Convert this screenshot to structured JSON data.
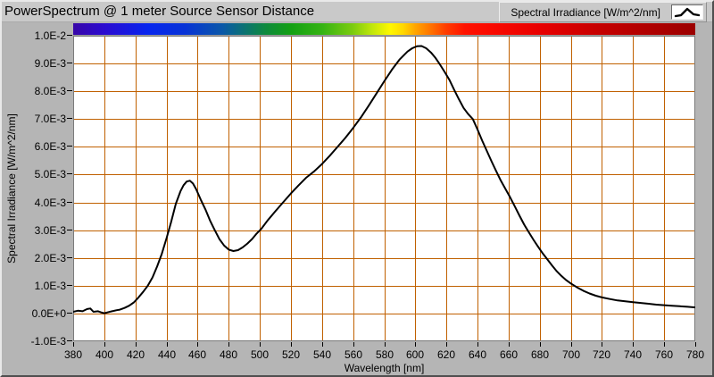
{
  "window": {
    "title": "PowerSpectrum @ 1 meter Source Sensor Distance"
  },
  "legend": {
    "label": "Spectral Irradiance [W/m^2/nm]",
    "icon": "curve-peak-icon"
  },
  "axes": {
    "x_title": "Wavelength [nm]",
    "y_title": "Spectral Irradiance [W/m^2/nm]",
    "x_ticks": [
      "380",
      "400",
      "420",
      "440",
      "460",
      "480",
      "500",
      "520",
      "540",
      "560",
      "580",
      "600",
      "620",
      "640",
      "660",
      "680",
      "700",
      "720",
      "740",
      "760",
      "780"
    ],
    "y_ticks": [
      "1.0E-2",
      "9.0E-3",
      "8.0E-3",
      "7.0E-3",
      "6.0E-3",
      "5.0E-3",
      "4.0E-3",
      "3.0E-3",
      "2.0E-3",
      "1.0E-3",
      "0.0E+0",
      "-1.0E-3"
    ]
  },
  "colors": {
    "grid": "#C06000",
    "curve": "#000000",
    "plot_bg": "#FFFFFF",
    "plot_border": "#7B7B7B",
    "panel_bg": "#B5B5B5",
    "titlebar_bg": "#C9C9C9",
    "spectrum_gradient": [
      [
        0,
        "#3807A8"
      ],
      [
        5,
        "#2B0BD0"
      ],
      [
        12,
        "#0725EE"
      ],
      [
        18,
        "#0733D6"
      ],
      [
        24,
        "#0A58A8"
      ],
      [
        28,
        "#0B766B"
      ],
      [
        31,
        "#0E8A3C"
      ],
      [
        35,
        "#13A013"
      ],
      [
        40,
        "#35B313"
      ],
      [
        45,
        "#7DCC10"
      ],
      [
        48,
        "#BFE60B"
      ],
      [
        51,
        "#FFF700"
      ],
      [
        53,
        "#FFD800"
      ],
      [
        55,
        "#FFA500"
      ],
      [
        57,
        "#FF7D00"
      ],
      [
        60,
        "#FF3C00"
      ],
      [
        63,
        "#FF1200"
      ],
      [
        67,
        "#FA0A00"
      ],
      [
        75,
        "#E80000"
      ],
      [
        85,
        "#C40000"
      ],
      [
        100,
        "#9B0000"
      ]
    ]
  },
  "chart_data": {
    "type": "line",
    "title": "PowerSpectrum @ 1 meter Source Sensor Distance",
    "xlabel": "Wavelength [nm]",
    "ylabel": "Spectral Irradiance [W/m^2/nm]",
    "xlim": [
      380,
      780
    ],
    "ylim": [
      -0.001,
      0.01
    ],
    "x_tick_step": 20,
    "y_tick_step": 0.001,
    "grid": true,
    "legend_position": "top-right",
    "series": [
      {
        "name": "Spectral Irradiance [W/m^2/nm]",
        "points": [
          [
            380,
            6e-05
          ],
          [
            383,
            0.0001
          ],
          [
            386,
            8e-05
          ],
          [
            389,
            0.00016
          ],
          [
            391,
            0.00018
          ],
          [
            393,
            6e-05
          ],
          [
            396,
            8e-05
          ],
          [
            398,
            4e-05
          ],
          [
            400,
            1e-05
          ],
          [
            402,
            4e-05
          ],
          [
            405,
            8e-05
          ],
          [
            408,
            0.00012
          ],
          [
            410,
            0.00014
          ],
          [
            413,
            0.0002
          ],
          [
            416,
            0.00028
          ],
          [
            419,
            0.0004
          ],
          [
            422,
            0.00058
          ],
          [
            425,
            0.00078
          ],
          [
            428,
            0.001
          ],
          [
            431,
            0.0013
          ],
          [
            434,
            0.0017
          ],
          [
            437,
            0.00215
          ],
          [
            440,
            0.0027
          ],
          [
            443,
            0.0033
          ],
          [
            446,
            0.00395
          ],
          [
            449,
            0.0044
          ],
          [
            451,
            0.00462
          ],
          [
            453,
            0.00475
          ],
          [
            455,
            0.00478
          ],
          [
            457,
            0.00468
          ],
          [
            459,
            0.00448
          ],
          [
            462,
            0.0041
          ],
          [
            465,
            0.00375
          ],
          [
            468,
            0.00335
          ],
          [
            471,
            0.003
          ],
          [
            474,
            0.00268
          ],
          [
            477,
            0.00245
          ],
          [
            480,
            0.0023
          ],
          [
            483,
            0.00225
          ],
          [
            486,
            0.00228
          ],
          [
            489,
            0.00238
          ],
          [
            492,
            0.00252
          ],
          [
            495,
            0.00268
          ],
          [
            498,
            0.00288
          ],
          [
            501,
            0.00305
          ],
          [
            505,
            0.00335
          ],
          [
            510,
            0.00368
          ],
          [
            515,
            0.004
          ],
          [
            520,
            0.00432
          ],
          [
            525,
            0.00462
          ],
          [
            530,
            0.0049
          ],
          [
            535,
            0.00512
          ],
          [
            540,
            0.00538
          ],
          [
            545,
            0.00568
          ],
          [
            550,
            0.006
          ],
          [
            555,
            0.00632
          ],
          [
            560,
            0.00668
          ],
          [
            565,
            0.00706
          ],
          [
            570,
            0.00748
          ],
          [
            575,
            0.00792
          ],
          [
            580,
            0.00836
          ],
          [
            585,
            0.00878
          ],
          [
            590,
            0.00915
          ],
          [
            595,
            0.00943
          ],
          [
            598,
            0.00955
          ],
          [
            601,
            0.00962
          ],
          [
            604,
            0.00963
          ],
          [
            607,
            0.00955
          ],
          [
            610,
            0.0094
          ],
          [
            613,
            0.0092
          ],
          [
            616,
            0.00895
          ],
          [
            619,
            0.00868
          ],
          [
            622,
            0.0084
          ],
          [
            625,
            0.00805
          ],
          [
            628,
            0.00772
          ],
          [
            631,
            0.0074
          ],
          [
            634,
            0.00718
          ],
          [
            637,
            0.007
          ],
          [
            640,
            0.00662
          ],
          [
            643,
            0.00622
          ],
          [
            646,
            0.00585
          ],
          [
            649,
            0.00548
          ],
          [
            652,
            0.00512
          ],
          [
            655,
            0.00478
          ],
          [
            658,
            0.00448
          ],
          [
            661,
            0.00418
          ],
          [
            664,
            0.00385
          ],
          [
            667,
            0.00352
          ],
          [
            670,
            0.0032
          ],
          [
            673,
            0.00292
          ],
          [
            676,
            0.00265
          ],
          [
            679,
            0.0024
          ],
          [
            682,
            0.00216
          ],
          [
            685,
            0.00194
          ],
          [
            688,
            0.00172
          ],
          [
            691,
            0.00152
          ],
          [
            694,
            0.00135
          ],
          [
            697,
            0.0012
          ],
          [
            700,
            0.00108
          ],
          [
            704,
            0.00094
          ],
          [
            708,
            0.00082
          ],
          [
            712,
            0.00072
          ],
          [
            716,
            0.00064
          ],
          [
            720,
            0.00058
          ],
          [
            725,
            0.00052
          ],
          [
            730,
            0.00047
          ],
          [
            735,
            0.00044
          ],
          [
            740,
            0.00041
          ],
          [
            745,
            0.00038
          ],
          [
            750,
            0.00035
          ],
          [
            755,
            0.00032
          ],
          [
            760,
            0.0003
          ],
          [
            765,
            0.00028
          ],
          [
            770,
            0.00026
          ],
          [
            775,
            0.00024
          ],
          [
            780,
            0.00022
          ]
        ]
      }
    ]
  }
}
